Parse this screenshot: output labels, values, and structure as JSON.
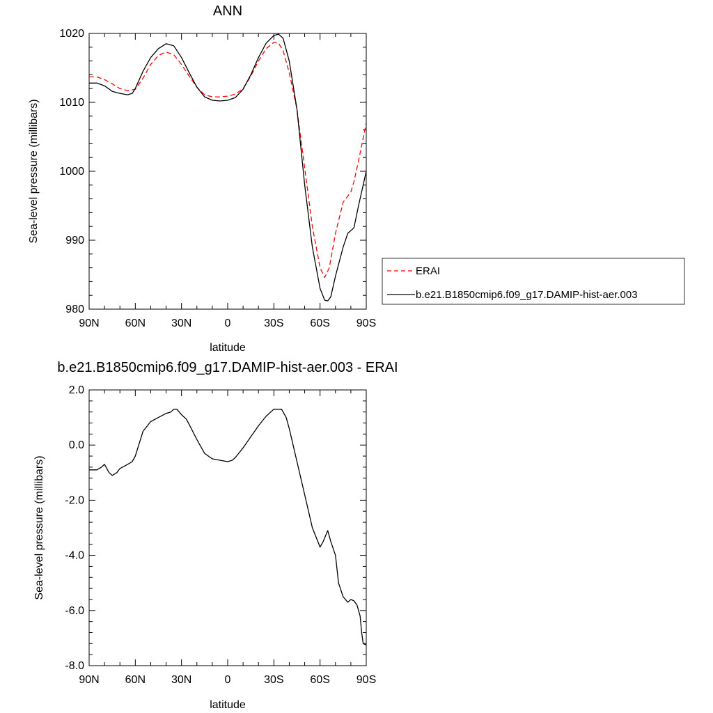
{
  "chart_data": [
    {
      "type": "line",
      "title": "ANN",
      "xlabel": "latitude",
      "ylabel": "Sea-level pressure (millibars)",
      "xlim": [
        90,
        -90
      ],
      "ylim": [
        980,
        1020
      ],
      "xticks": [
        {
          "value": 90,
          "label": "90N"
        },
        {
          "value": 60,
          "label": "60N"
        },
        {
          "value": 30,
          "label": "30N"
        },
        {
          "value": 0,
          "label": "0"
        },
        {
          "value": -30,
          "label": "30S"
        },
        {
          "value": -60,
          "label": "60S"
        },
        {
          "value": -90,
          "label": "90S"
        }
      ],
      "yticks": [
        {
          "value": 1020,
          "label": "1020"
        },
        {
          "value": 1010,
          "label": "1010"
        },
        {
          "value": 1000,
          "label": "1000"
        },
        {
          "value": 990,
          "label": "990"
        },
        {
          "value": 980,
          "label": "980"
        }
      ],
      "legend_position": "right",
      "series": [
        {
          "name": "ERAI",
          "color": "#ff0000",
          "dash": "dashed",
          "x": [
            90,
            85,
            80,
            75,
            70,
            65,
            60,
            55,
            50,
            45,
            40,
            35,
            30,
            25,
            20,
            15,
            10,
            5,
            0,
            -5,
            -10,
            -15,
            -20,
            -25,
            -30,
            -33,
            -36,
            -40,
            -45,
            -50,
            -55,
            -60,
            -63,
            -66,
            -70,
            -75,
            -80,
            -82,
            -85,
            -90
          ],
          "y": [
            1013.7,
            1013.7,
            1013.3,
            1012.7,
            1012.0,
            1011.7,
            1011.9,
            1013.5,
            1015.5,
            1016.8,
            1017.3,
            1016.9,
            1015.5,
            1013.8,
            1012.2,
            1011.1,
            1010.8,
            1010.8,
            1010.9,
            1011.2,
            1012.0,
            1013.8,
            1016.0,
            1017.8,
            1018.7,
            1018.6,
            1017.5,
            1014.3,
            1009.0,
            1000.5,
            992.0,
            986.0,
            984.6,
            986.0,
            991.0,
            995.5,
            997.0,
            998.5,
            1001.5,
            1007.0
          ]
        },
        {
          "name": "b.e21.B1850cmip6.f09_g17.DAMIP-hist-aer.003",
          "color": "#000000",
          "dash": "solid",
          "x": [
            90,
            85,
            80,
            75,
            70,
            65,
            62,
            60,
            55,
            50,
            45,
            40,
            35,
            30,
            25,
            20,
            15,
            10,
            5,
            0,
            -5,
            -10,
            -15,
            -20,
            -25,
            -30,
            -33,
            -36,
            -40,
            -45,
            -50,
            -55,
            -60,
            -63,
            -65,
            -67,
            -70,
            -75,
            -78,
            -82,
            -85,
            -90
          ],
          "y": [
            1012.8,
            1012.8,
            1012.4,
            1011.6,
            1011.3,
            1011.1,
            1011.3,
            1012.0,
            1014.5,
            1016.5,
            1017.8,
            1018.5,
            1018.2,
            1016.5,
            1014.3,
            1012.2,
            1010.8,
            1010.3,
            1010.2,
            1010.3,
            1010.7,
            1011.9,
            1014.0,
            1016.5,
            1018.6,
            1019.7,
            1019.9,
            1019.3,
            1016.0,
            1009.0,
            998.0,
            989.0,
            983.0,
            981.3,
            981.2,
            981.8,
            984.8,
            989.0,
            991.0,
            991.8,
            995.0,
            1000.0
          ]
        }
      ]
    },
    {
      "type": "line",
      "title": "b.e21.B1850cmip6.f09_g17.DAMIP-hist-aer.003 - ERAI",
      "xlabel": "latitude",
      "ylabel": "Sea-level pressure (millibars)",
      "xlim": [
        90,
        -90
      ],
      "ylim": [
        -8.0,
        2.0
      ],
      "xticks": [
        {
          "value": 90,
          "label": "90N"
        },
        {
          "value": 60,
          "label": "60N"
        },
        {
          "value": 30,
          "label": "30N"
        },
        {
          "value": 0,
          "label": "0"
        },
        {
          "value": -30,
          "label": "30S"
        },
        {
          "value": -60,
          "label": "60S"
        },
        {
          "value": -90,
          "label": "90S"
        }
      ],
      "yticks": [
        {
          "value": 2.0,
          "label": "2.0"
        },
        {
          "value": 0.0,
          "label": "0.0"
        },
        {
          "value": -2.0,
          "label": "-2.0"
        },
        {
          "value": -4.0,
          "label": "-4.0"
        },
        {
          "value": -6.0,
          "label": "-6.0"
        },
        {
          "value": -8.0,
          "label": "-8.0"
        }
      ],
      "series": [
        {
          "color": "#000000",
          "dash": "solid",
          "x": [
            90,
            85,
            82,
            80,
            77,
            75,
            72,
            70,
            65,
            62,
            60,
            55,
            50,
            45,
            40,
            37,
            35,
            33,
            30,
            27,
            25,
            20,
            15,
            10,
            5,
            0,
            -3,
            -5,
            -10,
            -15,
            -20,
            -25,
            -30,
            -35,
            -38,
            -40,
            -45,
            -50,
            -55,
            -60,
            -62,
            -65,
            -67,
            -70,
            -72,
            -75,
            -78,
            -80,
            -82,
            -84,
            -86,
            -87,
            -88,
            -90
          ],
          "y": [
            -0.9,
            -0.9,
            -0.8,
            -0.7,
            -1.0,
            -1.1,
            -1.0,
            -0.85,
            -0.7,
            -0.6,
            -0.4,
            0.5,
            0.85,
            1.0,
            1.15,
            1.2,
            1.3,
            1.3,
            1.1,
            0.95,
            0.75,
            0.2,
            -0.3,
            -0.5,
            -0.55,
            -0.6,
            -0.55,
            -0.45,
            -0.1,
            0.3,
            0.7,
            1.05,
            1.3,
            1.3,
            1.0,
            0.6,
            -0.6,
            -1.8,
            -3.0,
            -3.7,
            -3.5,
            -3.1,
            -3.5,
            -4.0,
            -5.0,
            -5.5,
            -5.7,
            -5.6,
            -5.65,
            -5.8,
            -6.2,
            -6.8,
            -7.2,
            -7.25
          ]
        }
      ]
    }
  ]
}
